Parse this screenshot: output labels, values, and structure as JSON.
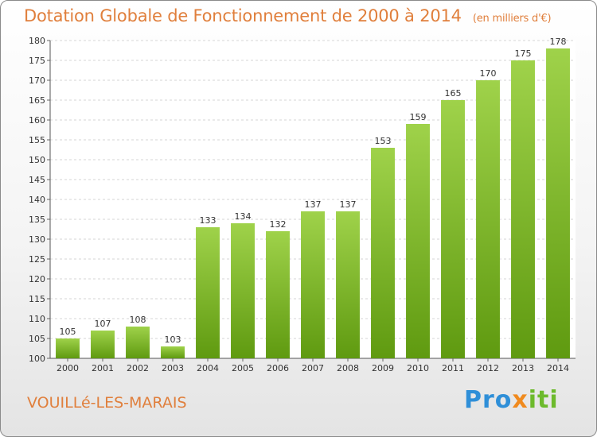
{
  "header": {
    "title": "Dotation Globale de Fonctionnement de 2000 à 2014",
    "subtitle": "(en milliers d'€)"
  },
  "footer": {
    "city": "VOUILLé-LES-MARAIS",
    "logo_parts": [
      "Pro",
      "x",
      "iti"
    ]
  },
  "colors": {
    "accent": "#e07f3c",
    "bar_top": "#9fd24a",
    "bar_bottom": "#5f9a10"
  },
  "chart_data": {
    "type": "bar",
    "categories": [
      "2000",
      "2001",
      "2002",
      "2003",
      "2004",
      "2005",
      "2006",
      "2007",
      "2008",
      "2009",
      "2010",
      "2011",
      "2012",
      "2013",
      "2014"
    ],
    "values": [
      105,
      107,
      108,
      103,
      133,
      134,
      132,
      137,
      137,
      153,
      159,
      165,
      170,
      175,
      178
    ],
    "data_labels": [
      "105",
      "107",
      "108",
      "103",
      "133",
      "134",
      "132",
      "137",
      "137",
      "153",
      "159",
      "165",
      "170",
      "175",
      "178"
    ],
    "ylim": [
      100,
      180
    ],
    "yticks": [
      100,
      105,
      110,
      115,
      120,
      125,
      130,
      135,
      140,
      145,
      150,
      155,
      160,
      165,
      170,
      175,
      180
    ],
    "grid": true,
    "legend": "none"
  }
}
